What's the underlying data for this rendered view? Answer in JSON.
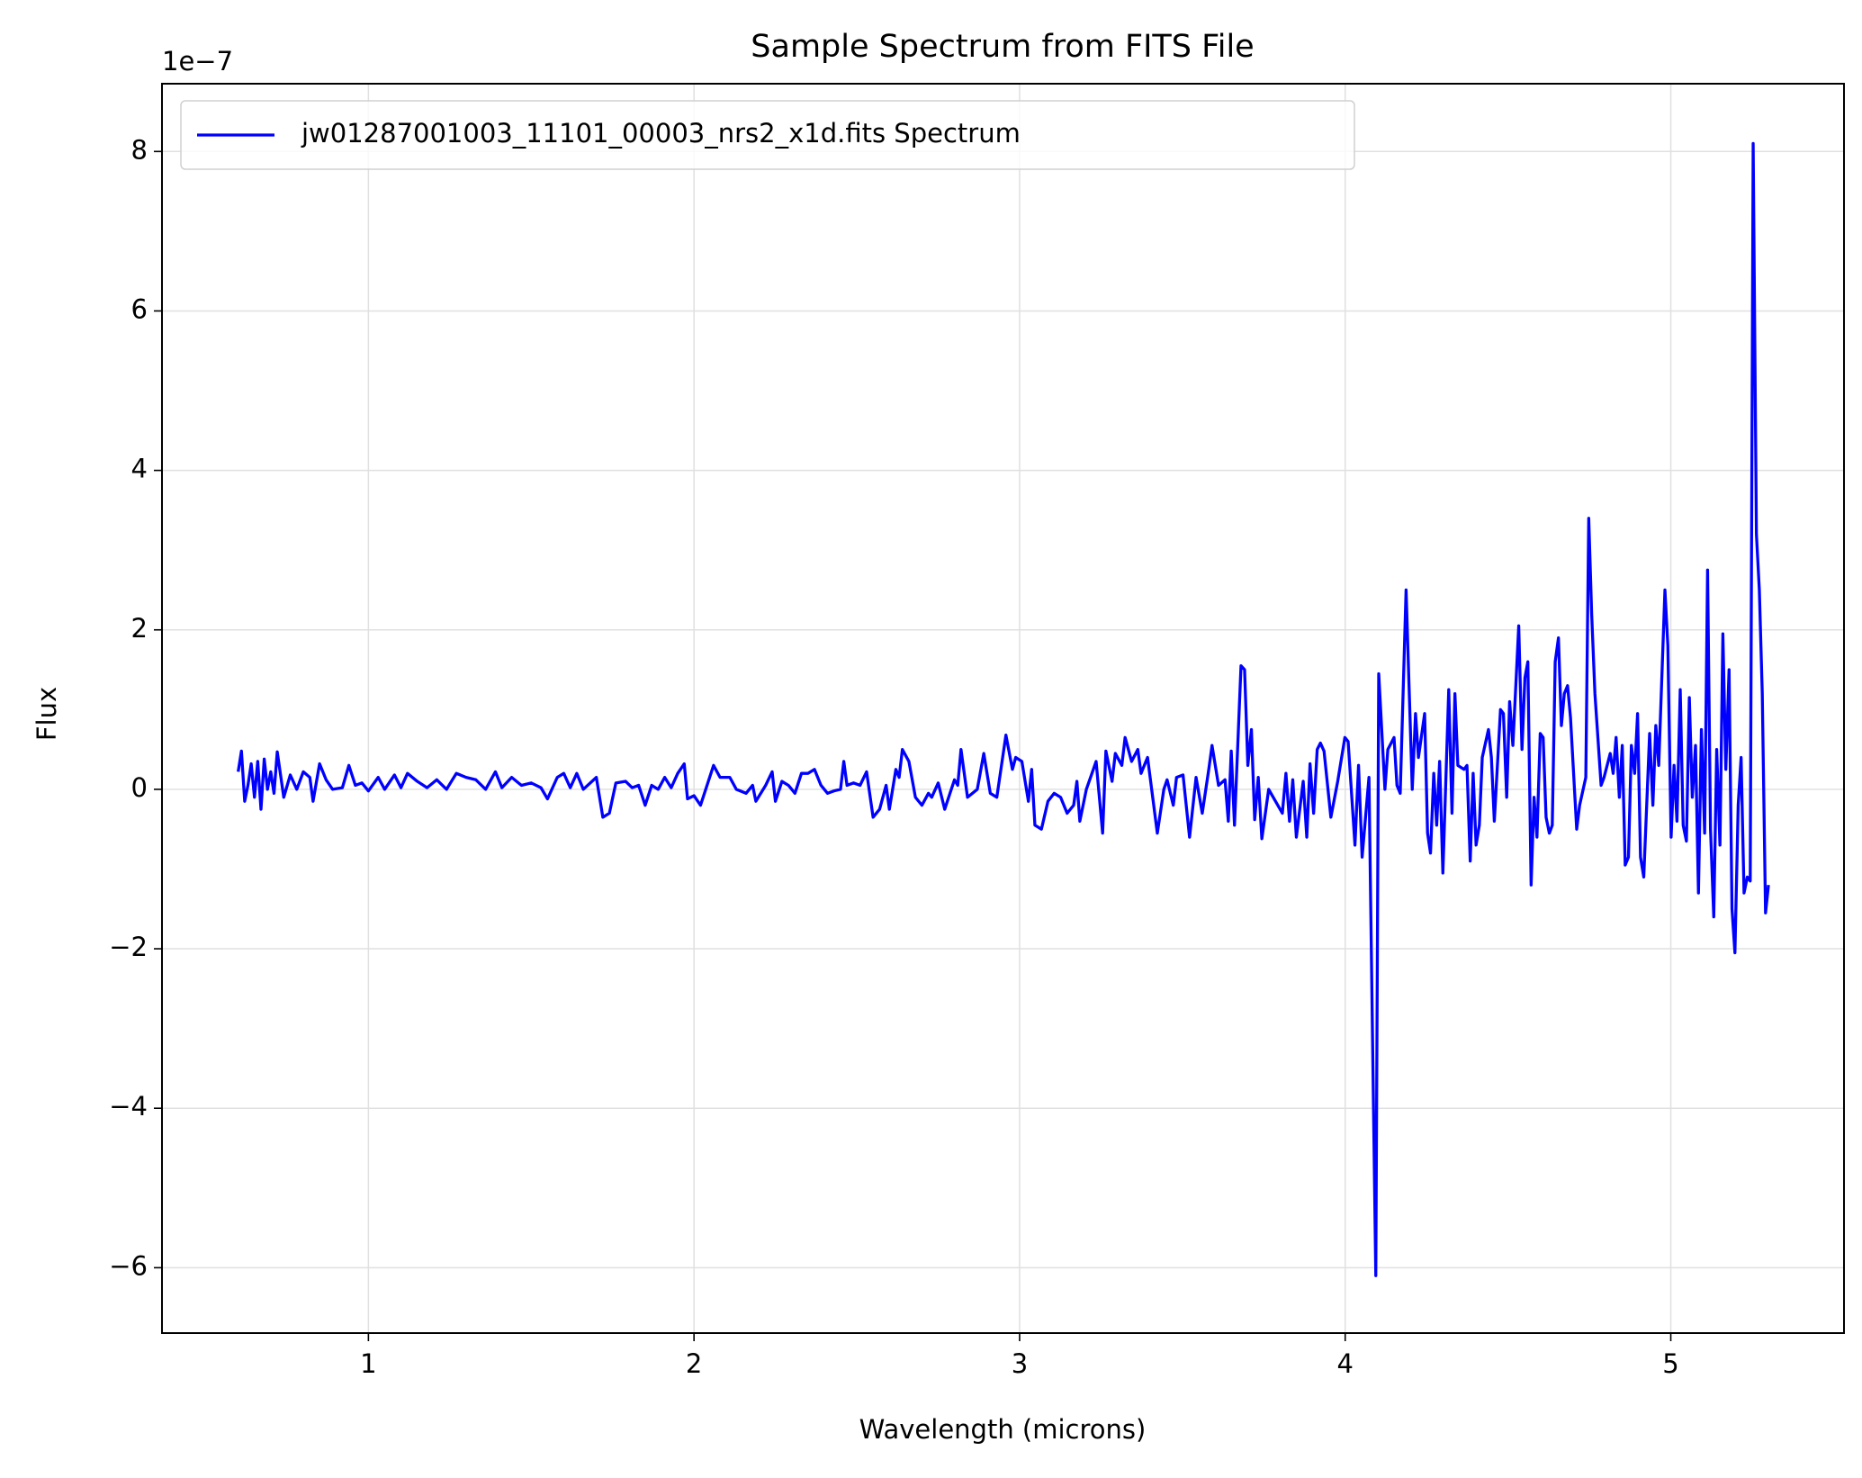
{
  "chart_data": {
    "type": "line",
    "title": "Sample Spectrum from FITS File",
    "x_label": "Wavelength (microns)",
    "y_label": "Flux",
    "y_offset_label": "1e−7",
    "grid": true,
    "legend": "upper left",
    "xlim": [
      0.366,
      5.532
    ],
    "ylim": [
      -6.82,
      8.85
    ],
    "xticks": [
      1,
      2,
      3,
      4,
      5
    ],
    "yticks": [
      {
        "value": -6,
        "label": "−6"
      },
      {
        "value": -4,
        "label": "−4"
      },
      {
        "value": -2,
        "label": "−2"
      },
      0,
      2,
      4,
      6,
      8
    ],
    "x": [
      0.6,
      0.61,
      0.62,
      0.63,
      0.64,
      0.65,
      0.66,
      0.67,
      0.68,
      0.69,
      0.7,
      0.71,
      0.72,
      0.74,
      0.76,
      0.78,
      0.8,
      0.82,
      0.83,
      0.85,
      0.87,
      0.89,
      0.92,
      0.94,
      0.96,
      0.98,
      1.0,
      1.03,
      1.05,
      1.08,
      1.1,
      1.12,
      1.15,
      1.18,
      1.21,
      1.24,
      1.27,
      1.3,
      1.33,
      1.36,
      1.39,
      1.41,
      1.44,
      1.47,
      1.5,
      1.53,
      1.55,
      1.58,
      1.6,
      1.62,
      1.64,
      1.66,
      1.7,
      1.72,
      1.74,
      1.76,
      1.79,
      1.81,
      1.83,
      1.85,
      1.87,
      1.89,
      1.91,
      1.93,
      1.95,
      1.97,
      1.98,
      2.0,
      2.02,
      2.04,
      2.06,
      2.08,
      2.11,
      2.13,
      2.16,
      2.18,
      2.19,
      2.22,
      2.24,
      2.25,
      2.27,
      2.29,
      2.31,
      2.33,
      2.35,
      2.37,
      2.39,
      2.41,
      2.43,
      2.45,
      2.46,
      2.47,
      2.49,
      2.51,
      2.53,
      2.55,
      2.57,
      2.59,
      2.6,
      2.62,
      2.63,
      2.64,
      2.66,
      2.68,
      2.7,
      2.72,
      2.73,
      2.75,
      2.77,
      2.8,
      2.81,
      2.82,
      2.84,
      2.87,
      2.89,
      2.91,
      2.93,
      2.958,
      2.978,
      2.988,
      3.007,
      3.027,
      3.037,
      3.047,
      3.067,
      3.087,
      3.106,
      3.126,
      3.146,
      3.166,
      3.176,
      3.185,
      3.205,
      3.235,
      3.255,
      3.265,
      3.284,
      3.294,
      3.314,
      3.324,
      3.344,
      3.363,
      3.373,
      3.393,
      3.423,
      3.443,
      3.453,
      3.472,
      3.482,
      3.502,
      3.522,
      3.542,
      3.561,
      3.581,
      3.591,
      3.611,
      3.631,
      3.641,
      3.65,
      3.66,
      3.68,
      3.691,
      3.701,
      3.712,
      3.722,
      3.733,
      3.744,
      3.765,
      3.786,
      3.807,
      3.818,
      3.829,
      3.839,
      3.85,
      3.871,
      3.882,
      3.892,
      3.903,
      3.914,
      3.924,
      3.935,
      3.956,
      3.977,
      3.999,
      4.009,
      4.03,
      4.041,
      4.052,
      4.073,
      4.094,
      4.103,
      4.122,
      4.131,
      4.15,
      4.159,
      4.169,
      4.187,
      4.206,
      4.216,
      4.225,
      4.244,
      4.253,
      4.262,
      4.272,
      4.281,
      4.29,
      4.3,
      4.318,
      4.328,
      4.337,
      4.346,
      4.365,
      4.374,
      4.384,
      4.393,
      4.402,
      4.412,
      4.421,
      4.44,
      4.449,
      4.458,
      4.477,
      4.486,
      4.496,
      4.505,
      4.515,
      4.533,
      4.543,
      4.552,
      4.561,
      4.571,
      4.58,
      4.589,
      4.599,
      4.608,
      4.617,
      4.627,
      4.636,
      4.645,
      4.655,
      4.664,
      4.673,
      4.683,
      4.692,
      4.711,
      4.72,
      4.739,
      4.748,
      4.757,
      4.767,
      4.786,
      4.795,
      4.814,
      4.823,
      4.832,
      4.842,
      4.851,
      4.86,
      4.87,
      4.879,
      4.889,
      4.898,
      4.907,
      4.917,
      4.935,
      4.945,
      4.954,
      4.963,
      4.982,
      4.991,
      5.001,
      5.01,
      5.019,
      5.029,
      5.038,
      5.048,
      5.057,
      5.066,
      5.076,
      5.085,
      5.094,
      5.104,
      5.113,
      5.122,
      5.132,
      5.141,
      5.151,
      5.16,
      5.169,
      5.179,
      5.188,
      5.197,
      5.207,
      5.216,
      5.225,
      5.235,
      5.244,
      5.253,
      5.263,
      5.272,
      5.281,
      5.291,
      5.3
    ],
    "series": [
      {
        "name": "jw01287001003_11101_00003_nrs2_x1d.fits Spectrum",
        "color": "#0000ff",
        "values": [
          0.22,
          0.48,
          -0.15,
          0.05,
          0.32,
          -0.1,
          0.35,
          -0.25,
          0.38,
          0.0,
          0.22,
          -0.05,
          0.47,
          -0.1,
          0.18,
          0.0,
          0.22,
          0.15,
          -0.15,
          0.32,
          0.12,
          0.0,
          0.02,
          0.3,
          0.05,
          0.08,
          -0.02,
          0.15,
          0.0,
          0.18,
          0.02,
          0.2,
          0.1,
          0.02,
          0.12,
          0.0,
          0.2,
          0.15,
          0.12,
          0.0,
          0.22,
          0.02,
          0.15,
          0.05,
          0.08,
          0.02,
          -0.12,
          0.15,
          0.2,
          0.02,
          0.2,
          0.0,
          0.15,
          -0.35,
          -0.3,
          0.08,
          0.1,
          0.02,
          0.05,
          -0.2,
          0.05,
          0.0,
          0.15,
          0.02,
          0.2,
          0.32,
          -0.12,
          -0.08,
          -0.2,
          0.05,
          0.3,
          0.15,
          0.15,
          0.0,
          -0.05,
          0.05,
          -0.15,
          0.05,
          0.22,
          -0.15,
          0.1,
          0.05,
          -0.05,
          0.2,
          0.2,
          0.25,
          0.05,
          -0.05,
          -0.02,
          0.0,
          0.35,
          0.05,
          0.08,
          0.05,
          0.22,
          -0.35,
          -0.25,
          0.05,
          -0.25,
          0.25,
          0.15,
          0.5,
          0.35,
          -0.1,
          -0.2,
          -0.05,
          -0.1,
          0.08,
          -0.25,
          0.12,
          0.05,
          0.5,
          -0.1,
          0.0,
          0.45,
          -0.05,
          -0.1,
          0.68,
          0.25,
          0.4,
          0.35,
          -0.15,
          0.25,
          -0.45,
          -0.5,
          -0.15,
          -0.05,
          -0.1,
          -0.3,
          -0.2,
          0.1,
          -0.4,
          0.0,
          0.35,
          -0.55,
          0.48,
          0.1,
          0.45,
          0.3,
          0.65,
          0.35,
          0.5,
          0.2,
          0.4,
          -0.55,
          0.0,
          0.12,
          -0.2,
          0.15,
          0.18,
          -0.6,
          0.15,
          -0.3,
          0.25,
          0.55,
          0.05,
          0.12,
          -0.4,
          0.48,
          -0.45,
          1.55,
          1.5,
          0.3,
          0.75,
          -0.38,
          0.15,
          -0.62,
          0.0,
          -0.15,
          -0.3,
          0.2,
          -0.4,
          0.12,
          -0.6,
          0.1,
          -0.6,
          0.32,
          -0.3,
          0.5,
          0.58,
          0.48,
          -0.35,
          0.1,
          0.65,
          0.6,
          -0.7,
          0.3,
          -0.85,
          0.15,
          -6.1,
          1.45,
          0.0,
          0.5,
          0.65,
          0.05,
          -0.05,
          2.5,
          0.0,
          0.95,
          0.4,
          0.95,
          -0.55,
          -0.8,
          0.2,
          -0.45,
          0.35,
          -1.05,
          1.25,
          -0.3,
          1.2,
          0.3,
          0.25,
          0.3,
          -0.9,
          0.2,
          -0.7,
          -0.45,
          0.4,
          0.75,
          0.4,
          -0.4,
          1.0,
          0.95,
          -0.1,
          1.1,
          0.55,
          2.05,
          0.5,
          1.4,
          1.6,
          -1.2,
          -0.1,
          -0.6,
          0.7,
          0.65,
          -0.35,
          -0.55,
          -0.45,
          1.6,
          1.9,
          0.8,
          1.2,
          1.3,
          0.9,
          -0.5,
          -0.2,
          0.15,
          3.4,
          2.2,
          1.2,
          0.05,
          0.15,
          0.45,
          0.2,
          0.65,
          -0.1,
          0.55,
          -0.95,
          -0.85,
          0.55,
          0.2,
          0.95,
          -0.85,
          -1.1,
          0.7,
          -0.2,
          0.8,
          0.3,
          2.5,
          1.8,
          -0.6,
          0.3,
          -0.4,
          1.25,
          -0.45,
          -0.65,
          1.15,
          -0.1,
          0.55,
          -1.3,
          0.75,
          -0.55,
          2.75,
          -0.5,
          -1.6,
          0.5,
          -0.7,
          1.95,
          0.25,
          1.5,
          -1.5,
          -2.05,
          -0.2,
          0.4,
          -1.3,
          -1.1,
          -1.15,
          8.1,
          3.2,
          2.5,
          1.2,
          -1.55,
          -1.2
        ]
      }
    ]
  }
}
